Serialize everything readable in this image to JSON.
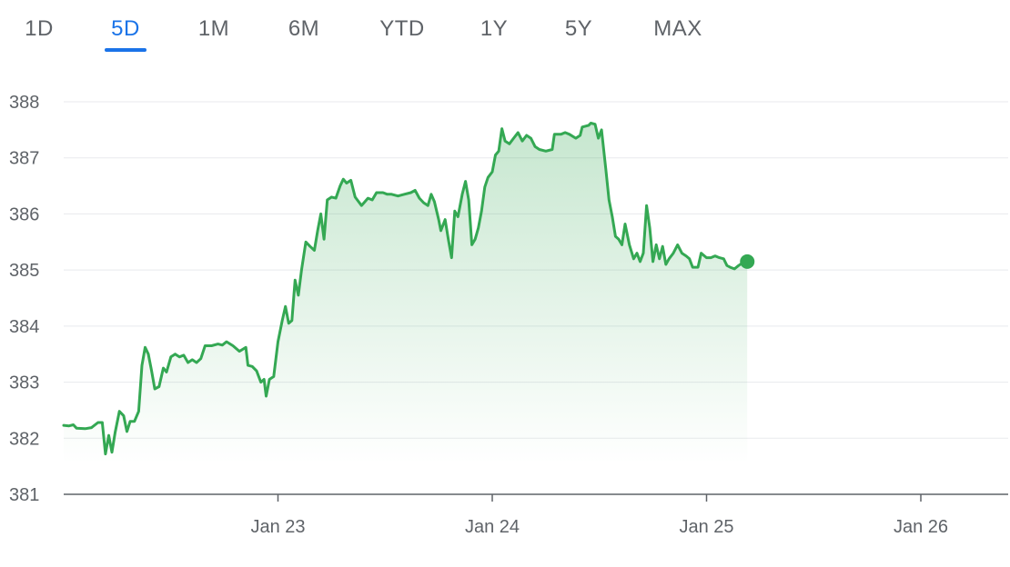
{
  "tabs": [
    {
      "label": "1D",
      "active": false
    },
    {
      "label": "5D",
      "active": true
    },
    {
      "label": "1M",
      "active": false
    },
    {
      "label": "6M",
      "active": false
    },
    {
      "label": "YTD",
      "active": false
    },
    {
      "label": "1Y",
      "active": false
    },
    {
      "label": "5Y",
      "active": false
    },
    {
      "label": "MAX",
      "active": false
    }
  ],
  "colors": {
    "line": "#34a853",
    "accent": "#1a73e8",
    "grid": "#e8eaed",
    "axis": "#5f6368"
  },
  "chart_data": {
    "type": "area",
    "title": "",
    "xlabel": "",
    "ylabel": "",
    "ylim": [
      381,
      388
    ],
    "yticks": [
      381,
      382,
      383,
      384,
      385,
      386,
      387,
      388
    ],
    "x_range_days": [
      0,
      4.6
    ],
    "xticks": [
      {
        "label": "Jan 23",
        "day": 1
      },
      {
        "label": "Jan 24",
        "day": 2
      },
      {
        "label": "Jan 25",
        "day": 3
      },
      {
        "label": "Jan 26",
        "day": 4
      }
    ],
    "grid": true,
    "series": [
      {
        "name": "",
        "points": [
          [
            0.0,
            382.23
          ],
          [
            0.025,
            382.22
          ],
          [
            0.045,
            382.24
          ],
          [
            0.06,
            382.18
          ],
          [
            0.1,
            382.17
          ],
          [
            0.13,
            382.19
          ],
          [
            0.16,
            382.28
          ],
          [
            0.18,
            382.28
          ],
          [
            0.195,
            381.72
          ],
          [
            0.21,
            382.05
          ],
          [
            0.225,
            381.75
          ],
          [
            0.24,
            382.1
          ],
          [
            0.26,
            382.48
          ],
          [
            0.28,
            382.4
          ],
          [
            0.295,
            382.12
          ],
          [
            0.31,
            382.3
          ],
          [
            0.33,
            382.3
          ],
          [
            0.35,
            382.48
          ],
          [
            0.365,
            383.3
          ],
          [
            0.38,
            383.62
          ],
          [
            0.395,
            383.5
          ],
          [
            0.41,
            383.2
          ],
          [
            0.425,
            382.88
          ],
          [
            0.445,
            382.92
          ],
          [
            0.465,
            383.25
          ],
          [
            0.48,
            383.18
          ],
          [
            0.5,
            383.45
          ],
          [
            0.52,
            383.5
          ],
          [
            0.54,
            383.45
          ],
          [
            0.56,
            383.48
          ],
          [
            0.58,
            383.35
          ],
          [
            0.6,
            383.4
          ],
          [
            0.62,
            383.35
          ],
          [
            0.64,
            383.42
          ],
          [
            0.66,
            383.65
          ],
          [
            0.69,
            383.65
          ],
          [
            0.72,
            383.68
          ],
          [
            0.74,
            383.66
          ],
          [
            0.76,
            383.72
          ],
          [
            0.79,
            383.65
          ],
          [
            0.82,
            383.55
          ],
          [
            0.85,
            383.62
          ],
          [
            0.86,
            383.3
          ],
          [
            0.88,
            383.28
          ],
          [
            0.9,
            383.2
          ],
          [
            0.92,
            383.0
          ],
          [
            0.935,
            383.05
          ],
          [
            0.945,
            382.75
          ],
          [
            0.96,
            383.05
          ],
          [
            0.98,
            383.1
          ],
          [
            1.0,
            383.72
          ],
          [
            1.02,
            384.1
          ],
          [
            1.035,
            384.35
          ],
          [
            1.05,
            384.05
          ],
          [
            1.065,
            384.1
          ],
          [
            1.08,
            384.82
          ],
          [
            1.095,
            384.55
          ],
          [
            1.11,
            385.0
          ],
          [
            1.13,
            385.5
          ],
          [
            1.15,
            385.42
          ],
          [
            1.17,
            385.35
          ],
          [
            1.185,
            385.7
          ],
          [
            1.2,
            386.0
          ],
          [
            1.215,
            385.55
          ],
          [
            1.23,
            386.25
          ],
          [
            1.25,
            386.3
          ],
          [
            1.27,
            386.28
          ],
          [
            1.29,
            386.5
          ],
          [
            1.305,
            386.62
          ],
          [
            1.32,
            386.55
          ],
          [
            1.34,
            386.6
          ],
          [
            1.36,
            386.3
          ],
          [
            1.39,
            386.15
          ],
          [
            1.42,
            386.28
          ],
          [
            1.44,
            386.25
          ],
          [
            1.46,
            386.38
          ],
          [
            1.49,
            386.38
          ],
          [
            1.51,
            386.35
          ],
          [
            1.53,
            386.35
          ],
          [
            1.56,
            386.32
          ],
          [
            1.59,
            386.35
          ],
          [
            1.62,
            386.38
          ],
          [
            1.64,
            386.42
          ],
          [
            1.66,
            386.28
          ],
          [
            1.68,
            386.2
          ],
          [
            1.7,
            386.15
          ],
          [
            1.715,
            386.35
          ],
          [
            1.73,
            386.22
          ],
          [
            1.75,
            385.9
          ],
          [
            1.76,
            385.7
          ],
          [
            1.78,
            385.9
          ],
          [
            1.795,
            385.55
          ],
          [
            1.81,
            385.22
          ],
          [
            1.825,
            386.05
          ],
          [
            1.84,
            385.95
          ],
          [
            1.86,
            386.35
          ],
          [
            1.875,
            386.58
          ],
          [
            1.89,
            386.25
          ],
          [
            1.905,
            385.45
          ],
          [
            1.92,
            385.55
          ],
          [
            1.935,
            385.75
          ],
          [
            1.95,
            386.05
          ],
          [
            1.965,
            386.48
          ],
          [
            1.98,
            386.65
          ],
          [
            2.0,
            386.75
          ],
          [
            2.015,
            387.05
          ],
          [
            2.03,
            387.12
          ],
          [
            2.045,
            387.52
          ],
          [
            2.06,
            387.3
          ],
          [
            2.08,
            387.25
          ],
          [
            2.1,
            387.35
          ],
          [
            2.12,
            387.45
          ],
          [
            2.14,
            387.3
          ],
          [
            2.16,
            387.4
          ],
          [
            2.18,
            387.35
          ],
          [
            2.2,
            387.2
          ],
          [
            2.22,
            387.15
          ],
          [
            2.25,
            387.12
          ],
          [
            2.28,
            387.15
          ],
          [
            2.29,
            387.42
          ],
          [
            2.32,
            387.42
          ],
          [
            2.34,
            387.45
          ],
          [
            2.36,
            387.42
          ],
          [
            2.39,
            387.35
          ],
          [
            2.41,
            387.4
          ],
          [
            2.42,
            387.55
          ],
          [
            2.45,
            387.58
          ],
          [
            2.46,
            387.62
          ],
          [
            2.48,
            387.6
          ],
          [
            2.495,
            387.35
          ],
          [
            2.51,
            387.5
          ],
          [
            2.53,
            386.8
          ],
          [
            2.545,
            386.25
          ],
          [
            2.56,
            385.95
          ],
          [
            2.575,
            385.6
          ],
          [
            2.59,
            385.55
          ],
          [
            2.605,
            385.45
          ],
          [
            2.62,
            385.82
          ],
          [
            2.64,
            385.45
          ],
          [
            2.66,
            385.2
          ],
          [
            2.675,
            385.3
          ],
          [
            2.69,
            385.15
          ],
          [
            2.705,
            385.3
          ],
          [
            2.72,
            386.15
          ],
          [
            2.735,
            385.75
          ],
          [
            2.75,
            385.15
          ],
          [
            2.765,
            385.45
          ],
          [
            2.78,
            385.2
          ],
          [
            2.795,
            385.42
          ],
          [
            2.81,
            385.1
          ],
          [
            2.825,
            385.2
          ],
          [
            2.845,
            385.3
          ],
          [
            2.865,
            385.45
          ],
          [
            2.885,
            385.3
          ],
          [
            2.905,
            385.25
          ],
          [
            2.92,
            385.2
          ],
          [
            2.935,
            385.05
          ],
          [
            2.96,
            385.05
          ],
          [
            2.975,
            385.3
          ],
          [
            3.0,
            385.22
          ],
          [
            3.02,
            385.22
          ],
          [
            3.04,
            385.25
          ],
          [
            3.06,
            385.22
          ],
          [
            3.08,
            385.2
          ],
          [
            3.095,
            385.08
          ],
          [
            3.11,
            385.05
          ],
          [
            3.13,
            385.02
          ],
          [
            3.15,
            385.08
          ],
          [
            3.165,
            385.12
          ],
          [
            3.175,
            385.18
          ],
          [
            3.19,
            385.15
          ]
        ]
      }
    ]
  }
}
